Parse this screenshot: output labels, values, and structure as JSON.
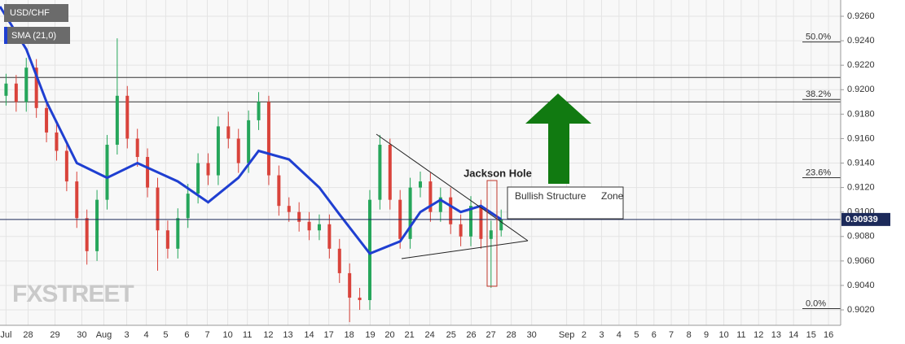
{
  "chart_data": {
    "type": "candlestick",
    "symbol": "USD/CHF",
    "indicator": "SMA (21,0)",
    "watermark": "FXSTREET",
    "xlim": [
      -0.3,
      41.3
    ],
    "ylim": [
      0.90074,
      0.92733
    ],
    "grid": true,
    "xticks": [
      {
        "value": 0,
        "label": "Jul"
      },
      {
        "value": 1.09,
        "label": "28"
      },
      {
        "value": 2.42,
        "label": "29"
      },
      {
        "value": 3.75,
        "label": "30"
      },
      {
        "value": 4.84,
        "label": "Aug"
      },
      {
        "value": 5.97,
        "label": "3"
      },
      {
        "value": 6.94,
        "label": "4"
      },
      {
        "value": 7.9,
        "label": "5"
      },
      {
        "value": 8.95,
        "label": "6"
      },
      {
        "value": 9.96,
        "label": "7"
      },
      {
        "value": 10.97,
        "label": "10"
      },
      {
        "value": 11.94,
        "label": "11"
      },
      {
        "value": 12.98,
        "label": "12"
      },
      {
        "value": 13.95,
        "label": "13"
      },
      {
        "value": 15,
        "label": "14"
      },
      {
        "value": 15.97,
        "label": "17"
      },
      {
        "value": 16.98,
        "label": "18"
      },
      {
        "value": 18.02,
        "label": "19"
      },
      {
        "value": 18.99,
        "label": "20"
      },
      {
        "value": 19.96,
        "label": "21"
      },
      {
        "value": 20.97,
        "label": "24"
      },
      {
        "value": 22.02,
        "label": "25"
      },
      {
        "value": 23.02,
        "label": "26"
      },
      {
        "value": 23.99,
        "label": "27"
      },
      {
        "value": 25,
        "label": "28"
      },
      {
        "value": 26.01,
        "label": "30"
      },
      {
        "value": 27.74,
        "label": "Sep"
      },
      {
        "value": 28.6,
        "label": "2"
      },
      {
        "value": 29.47,
        "label": "3"
      },
      {
        "value": 30.33,
        "label": "4"
      },
      {
        "value": 31.2,
        "label": "5"
      },
      {
        "value": 32.06,
        "label": "6"
      },
      {
        "value": 32.92,
        "label": "7"
      },
      {
        "value": 33.79,
        "label": "8"
      },
      {
        "value": 34.65,
        "label": "9"
      },
      {
        "value": 35.52,
        "label": "10"
      },
      {
        "value": 36.38,
        "label": "11"
      },
      {
        "value": 37.24,
        "label": "12"
      },
      {
        "value": 38.11,
        "label": "13"
      },
      {
        "value": 38.97,
        "label": "14"
      },
      {
        "value": 39.84,
        "label": "15"
      },
      {
        "value": 40.7,
        "label": "16"
      }
    ],
    "yticks": [
      {
        "value": 0.926,
        "label": "0.9260"
      },
      {
        "value": 0.924,
        "label": "0.9240"
      },
      {
        "value": 0.922,
        "label": "0.9220"
      },
      {
        "value": 0.92,
        "label": "0.9200"
      },
      {
        "value": 0.918,
        "label": "0.9180"
      },
      {
        "value": 0.916,
        "label": "0.9160"
      },
      {
        "value": 0.914,
        "label": "0.9140"
      },
      {
        "value": 0.912,
        "label": "0.9120"
      },
      {
        "value": 0.91,
        "label": "0.9100"
      },
      {
        "value": 0.908,
        "label": "0.9080"
      },
      {
        "value": 0.906,
        "label": "0.9060"
      },
      {
        "value": 0.904,
        "label": "0.9040"
      },
      {
        "value": 0.902,
        "label": "0.9020"
      }
    ],
    "up_color": "#26a65b",
    "down_color": "#d9433b",
    "x": [
      0,
      0.5,
      1,
      1.5,
      2,
      2.5,
      3,
      3.5,
      4,
      4.5,
      5,
      5.5,
      6,
      6.5,
      7,
      7.5,
      8,
      8.5,
      9,
      9.5,
      10,
      10.5,
      11,
      11.5,
      12,
      12.5,
      13,
      13.5,
      14,
      14.5,
      15,
      15.5,
      16,
      16.5,
      17,
      17.5,
      18,
      18.5,
      19,
      19.5,
      20,
      20.5,
      21,
      21.5,
      22,
      22.5,
      23,
      23.5,
      24,
      24.5
    ],
    "open": [
      0.9195,
      0.9205,
      0.919,
      0.9218,
      0.9185,
      0.9165,
      0.915,
      0.9125,
      0.9095,
      0.9068,
      0.911,
      0.9155,
      0.9195,
      0.916,
      0.9145,
      0.912,
      0.9085,
      0.907,
      0.9095,
      0.9115,
      0.914,
      0.913,
      0.917,
      0.916,
      0.914,
      0.9175,
      0.919,
      0.913,
      0.9105,
      0.91,
      0.9092,
      0.9085,
      0.909,
      0.907,
      0.905,
      0.903,
      0.9028,
      0.911,
      0.9155,
      0.911,
      0.9078,
      0.912,
      0.9125,
      0.91,
      0.9112,
      0.909,
      0.908,
      0.9105,
      0.9078,
      0.9085
    ],
    "high": [
      0.9213,
      0.9212,
      0.9226,
      0.9225,
      0.9192,
      0.9172,
      0.9158,
      0.9133,
      0.9102,
      0.9118,
      0.9163,
      0.9242,
      0.9203,
      0.9168,
      0.9152,
      0.9128,
      0.9093,
      0.9103,
      0.9123,
      0.9148,
      0.9148,
      0.9178,
      0.9182,
      0.9168,
      0.9183,
      0.9198,
      0.9195,
      0.9138,
      0.9112,
      0.9108,
      0.91,
      0.9098,
      0.9098,
      0.9078,
      0.9058,
      0.9038,
      0.9118,
      0.9163,
      0.916,
      0.9118,
      0.9128,
      0.9133,
      0.9132,
      0.912,
      0.912,
      0.9098,
      0.9113,
      0.911,
      0.9093,
      0.9102
    ],
    "low": [
      0.9187,
      0.9182,
      0.9182,
      0.9177,
      0.9157,
      0.9142,
      0.9117,
      0.9087,
      0.9057,
      0.906,
      0.9102,
      0.9147,
      0.9152,
      0.9137,
      0.9112,
      0.9052,
      0.9062,
      0.9062,
      0.9087,
      0.9107,
      0.9122,
      0.9122,
      0.9152,
      0.9132,
      0.9132,
      0.9167,
      0.9122,
      0.9097,
      0.9092,
      0.9084,
      0.9077,
      0.9077,
      0.9062,
      0.9042,
      0.901,
      0.902,
      0.902,
      0.9102,
      0.9102,
      0.907,
      0.907,
      0.9112,
      0.9092,
      0.9092,
      0.9082,
      0.9072,
      0.9072,
      0.907,
      0.9038,
      0.908
    ],
    "close": [
      0.9205,
      0.919,
      0.9218,
      0.9185,
      0.9165,
      0.915,
      0.9125,
      0.9095,
      0.9068,
      0.911,
      0.9155,
      0.9195,
      0.916,
      0.9145,
      0.912,
      0.9085,
      0.907,
      0.9095,
      0.9115,
      0.914,
      0.913,
      0.917,
      0.916,
      0.914,
      0.9175,
      0.919,
      0.913,
      0.9105,
      0.91,
      0.9092,
      0.9085,
      0.909,
      0.907,
      0.905,
      0.903,
      0.9028,
      0.911,
      0.9155,
      0.911,
      0.9078,
      0.912,
      0.9125,
      0.91,
      0.9112,
      0.909,
      0.908,
      0.9105,
      0.9078,
      0.9085,
      0.9094
    ],
    "sma": {
      "color": "#1f3fd1",
      "x": [
        -0.3,
        1,
        2,
        3.5,
        5,
        6.5,
        8.5,
        10,
        11.5,
        12.5,
        14,
        15.5,
        16.5,
        18,
        19.5,
        20.5,
        21.5,
        22.5,
        23.5,
        24.5
      ],
      "values": [
        0.9268,
        0.9233,
        0.919,
        0.914,
        0.9128,
        0.914,
        0.9125,
        0.9108,
        0.9128,
        0.915,
        0.9143,
        0.912,
        0.9098,
        0.9066,
        0.9076,
        0.91,
        0.911,
        0.91,
        0.9105,
        0.9094
      ]
    },
    "levels": [
      0.921,
      0.919
    ],
    "last_price": {
      "value": 0.90939,
      "label": "0.90939"
    },
    "fib_labels": [
      {
        "value": 0.9243,
        "label": "50.0%"
      },
      {
        "value": 0.9196,
        "label": "38.2%"
      },
      {
        "value": 0.9132,
        "label": "23.6%"
      },
      {
        "value": 0.9025,
        "label": "0.0%"
      }
    ],
    "annotations": [
      "Jackson Hole",
      "Bullish Structure",
      "Zone"
    ]
  }
}
